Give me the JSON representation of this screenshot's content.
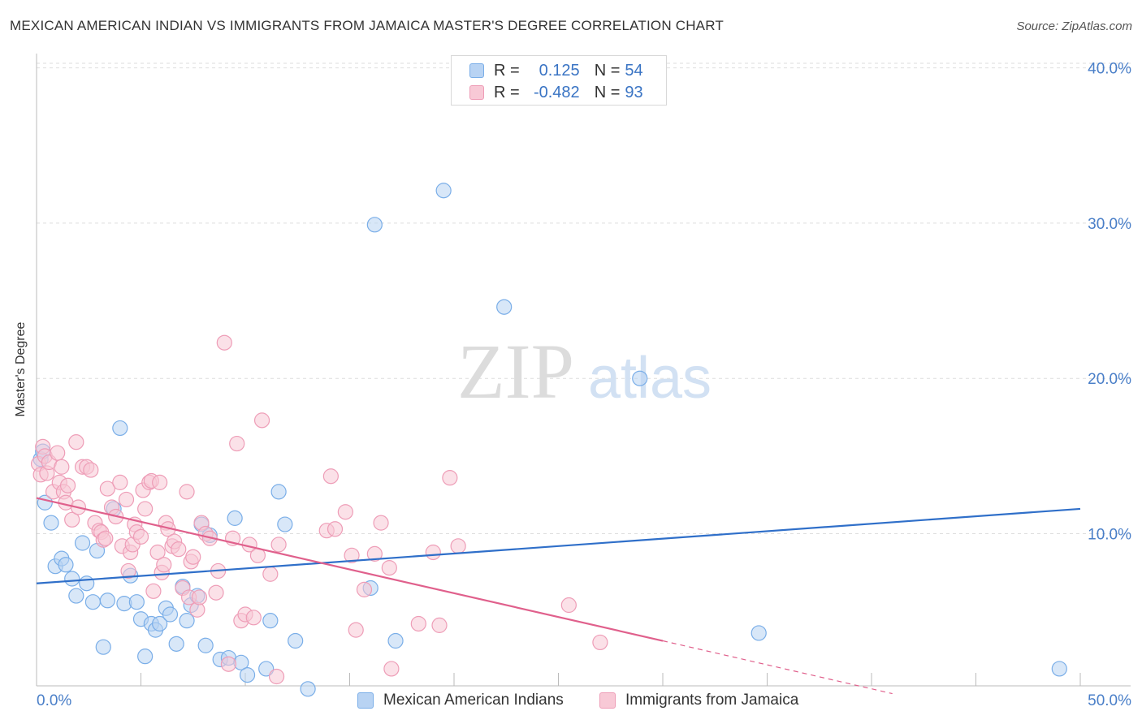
{
  "chart_data": {
    "type": "scatter",
    "title": "MEXICAN AMERICAN INDIAN VS IMMIGRANTS FROM JAMAICA MASTER'S DEGREE CORRELATION CHART",
    "source": "Source: ZipAtlas.com",
    "ylabel": "Master's Degree",
    "xlim": [
      0,
      50
    ],
    "ylim": [
      0,
      40
    ],
    "x_tick_labels": [
      "0.0%",
      "50.0%"
    ],
    "y_ticks": [
      10,
      20,
      30,
      40
    ],
    "y_tick_labels": [
      "10.0%",
      "20.0%",
      "30.0%",
      "40.0%"
    ],
    "watermark": {
      "zip": "ZIP",
      "atlas": "atlas"
    },
    "legend": {
      "rows": [
        {
          "r_label": "R =",
          "r_value": "0.125",
          "n_label": "N =",
          "n_value": "54"
        },
        {
          "r_label": "R =",
          "r_value": "-0.482",
          "n_label": "N =",
          "n_value": "93"
        }
      ]
    },
    "series": [
      {
        "name": "Mexican American Indians",
        "color": "#7aaee8",
        "fill": "#b8d3f3",
        "line_color": "#2f6fc9",
        "trend": {
          "x0": 0,
          "y0": 6.8,
          "x1": 50,
          "y1": 11.6
        },
        "points": [
          [
            0.2,
            14.8
          ],
          [
            0.3,
            15.3
          ],
          [
            0.4,
            12.0
          ],
          [
            0.7,
            10.7
          ],
          [
            0.9,
            7.9
          ],
          [
            1.2,
            8.4
          ],
          [
            1.4,
            8.0
          ],
          [
            1.7,
            7.1
          ],
          [
            1.9,
            6.0
          ],
          [
            2.2,
            9.4
          ],
          [
            2.4,
            6.8
          ],
          [
            2.7,
            5.6
          ],
          [
            2.9,
            8.9
          ],
          [
            3.2,
            2.7
          ],
          [
            3.4,
            5.7
          ],
          [
            3.7,
            11.6
          ],
          [
            4.0,
            16.8
          ],
          [
            4.2,
            5.5
          ],
          [
            4.5,
            7.3
          ],
          [
            4.8,
            5.6
          ],
          [
            5.0,
            4.5
          ],
          [
            5.2,
            2.1
          ],
          [
            5.5,
            4.2
          ],
          [
            5.7,
            3.8
          ],
          [
            5.9,
            4.2
          ],
          [
            6.2,
            5.2
          ],
          [
            6.4,
            4.8
          ],
          [
            6.7,
            2.9
          ],
          [
            7.0,
            6.6
          ],
          [
            7.2,
            4.4
          ],
          [
            7.4,
            5.4
          ],
          [
            7.7,
            6.0
          ],
          [
            7.9,
            10.6
          ],
          [
            8.1,
            2.8
          ],
          [
            8.3,
            9.9
          ],
          [
            8.8,
            1.9
          ],
          [
            9.2,
            2.0
          ],
          [
            9.5,
            11.0
          ],
          [
            9.8,
            1.7
          ],
          [
            10.1,
            0.9
          ],
          [
            11.0,
            1.3
          ],
          [
            11.2,
            4.4
          ],
          [
            11.6,
            12.7
          ],
          [
            11.9,
            10.6
          ],
          [
            12.4,
            3.1
          ],
          [
            13.0,
            0.0
          ],
          [
            16.0,
            6.5
          ],
          [
            16.2,
            29.9
          ],
          [
            17.2,
            3.1
          ],
          [
            19.5,
            32.1
          ],
          [
            22.4,
            24.6
          ],
          [
            28.9,
            20.0
          ],
          [
            34.6,
            3.6
          ],
          [
            49.0,
            1.3
          ]
        ]
      },
      {
        "name": "Immigrants from Jamaica",
        "color": "#ee9db7",
        "fill": "#f8c9d6",
        "line_color": "#e0608c",
        "trend": {
          "x0": 0,
          "y0": 12.3,
          "x1": 30,
          "y1": 3.1
        },
        "trend_dash": {
          "x0": 30,
          "y0": 3.1,
          "x1": 41,
          "y1": -0.3
        },
        "points": [
          [
            0.1,
            14.5
          ],
          [
            0.2,
            13.8
          ],
          [
            0.3,
            15.6
          ],
          [
            0.4,
            15.0
          ],
          [
            0.5,
            13.9
          ],
          [
            0.6,
            14.6
          ],
          [
            0.8,
            12.7
          ],
          [
            1.0,
            15.2
          ],
          [
            1.1,
            13.3
          ],
          [
            1.2,
            14.3
          ],
          [
            1.3,
            12.7
          ],
          [
            1.4,
            12.0
          ],
          [
            1.5,
            13.1
          ],
          [
            1.7,
            10.9
          ],
          [
            1.9,
            15.9
          ],
          [
            2.0,
            11.7
          ],
          [
            2.2,
            14.3
          ],
          [
            2.4,
            14.3
          ],
          [
            2.6,
            14.1
          ],
          [
            2.8,
            10.7
          ],
          [
            3.0,
            10.2
          ],
          [
            3.1,
            10.1
          ],
          [
            3.2,
            9.6
          ],
          [
            3.3,
            9.7
          ],
          [
            3.4,
            12.9
          ],
          [
            3.6,
            11.7
          ],
          [
            3.8,
            11.1
          ],
          [
            4.0,
            13.3
          ],
          [
            4.1,
            9.2
          ],
          [
            4.3,
            12.2
          ],
          [
            4.4,
            7.6
          ],
          [
            4.5,
            8.8
          ],
          [
            4.6,
            9.3
          ],
          [
            4.7,
            10.6
          ],
          [
            4.8,
            10.1
          ],
          [
            5.0,
            9.8
          ],
          [
            5.1,
            12.8
          ],
          [
            5.2,
            11.6
          ],
          [
            5.4,
            13.3
          ],
          [
            5.5,
            13.4
          ],
          [
            5.6,
            6.3
          ],
          [
            5.8,
            8.8
          ],
          [
            5.9,
            13.3
          ],
          [
            6.0,
            7.5
          ],
          [
            6.1,
            8.0
          ],
          [
            6.2,
            10.7
          ],
          [
            6.3,
            10.3
          ],
          [
            6.5,
            9.2
          ],
          [
            6.6,
            9.5
          ],
          [
            6.8,
            9.0
          ],
          [
            7.0,
            6.5
          ],
          [
            7.2,
            12.7
          ],
          [
            7.3,
            5.9
          ],
          [
            7.4,
            8.2
          ],
          [
            7.5,
            8.5
          ],
          [
            7.7,
            5.1
          ],
          [
            7.8,
            5.9
          ],
          [
            7.9,
            10.7
          ],
          [
            8.1,
            10.0
          ],
          [
            8.3,
            9.7
          ],
          [
            8.6,
            6.2
          ],
          [
            8.7,
            7.6
          ],
          [
            9.0,
            22.3
          ],
          [
            9.2,
            1.6
          ],
          [
            9.4,
            9.7
          ],
          [
            9.6,
            15.8
          ],
          [
            9.8,
            4.4
          ],
          [
            10.0,
            4.8
          ],
          [
            10.2,
            9.3
          ],
          [
            10.4,
            4.6
          ],
          [
            10.6,
            8.6
          ],
          [
            10.8,
            17.3
          ],
          [
            11.2,
            7.4
          ],
          [
            11.5,
            0.8
          ],
          [
            11.6,
            9.3
          ],
          [
            13.9,
            10.2
          ],
          [
            14.1,
            13.7
          ],
          [
            14.3,
            10.3
          ],
          [
            14.8,
            11.4
          ],
          [
            15.1,
            8.6
          ],
          [
            15.3,
            3.8
          ],
          [
            15.7,
            6.4
          ],
          [
            16.2,
            8.7
          ],
          [
            16.5,
            10.7
          ],
          [
            16.9,
            7.8
          ],
          [
            17.0,
            1.3
          ],
          [
            18.3,
            4.2
          ],
          [
            19.0,
            8.8
          ],
          [
            19.3,
            4.1
          ],
          [
            19.8,
            13.6
          ],
          [
            20.2,
            9.2
          ],
          [
            25.5,
            5.4
          ],
          [
            27.0,
            3.0
          ]
        ]
      }
    ]
  }
}
